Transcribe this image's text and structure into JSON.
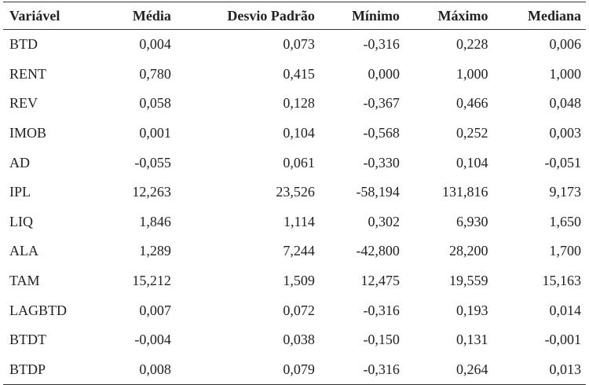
{
  "table": {
    "header": [
      "Variável",
      "Média",
      "Desvio Padrão",
      "Mínimo",
      "Máximo",
      "Mediana"
    ],
    "rows": [
      [
        "BTD",
        "0,004",
        "0,073",
        "-0,316",
        "0,228",
        "0,006"
      ],
      [
        "RENT",
        "0,780",
        "0,415",
        "0,000",
        "1,000",
        "1,000"
      ],
      [
        "REV",
        "0,058",
        "0,128",
        "-0,367",
        "0,466",
        "0,048"
      ],
      [
        "IMOB",
        "0,001",
        "0,104",
        "-0,568",
        "0,252",
        "0,003"
      ],
      [
        "AD",
        "-0,055",
        "0,061",
        "-0,330",
        "0,104",
        "-0,051"
      ],
      [
        "IPL",
        "12,263",
        "23,526",
        "-58,194",
        "131,816",
        "9,173"
      ],
      [
        "LIQ",
        "1,846",
        "1,114",
        "0,302",
        "6,930",
        "1,650"
      ],
      [
        "ALA",
        "1,289",
        "7,244",
        "-42,800",
        "28,200",
        "1,700"
      ],
      [
        "TAM",
        "15,212",
        "1,509",
        "12,475",
        "19,559",
        "15,163"
      ],
      [
        "LAGBTD",
        "0,007",
        "0,072",
        "-0,316",
        "0,193",
        "0,014"
      ],
      [
        "BTDT",
        "-0,004",
        "0,038",
        "-0,150",
        "0,131",
        "-0,001"
      ],
      [
        "BTDP",
        "0,008",
        "0,079",
        "-0,316",
        "0,264",
        "0,013"
      ]
    ]
  }
}
